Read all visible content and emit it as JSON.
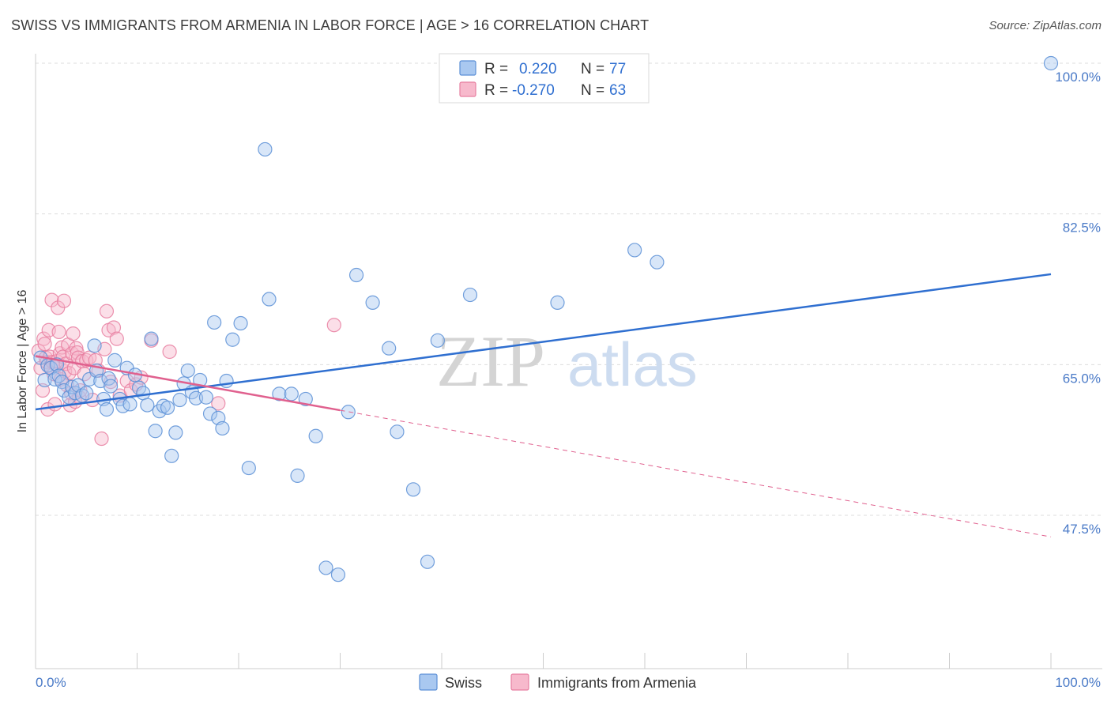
{
  "title": "SWISS VS IMMIGRANTS FROM ARMENIA IN LABOR FORCE | AGE > 16 CORRELATION CHART",
  "source": "Source: ZipAtlas.com",
  "watermark": {
    "zip": "ZIP",
    "atlas": "atlas"
  },
  "colors": {
    "swiss_fill": "#a9c8f0",
    "swiss_stroke": "#5b8fd6",
    "swiss_line": "#2f6fd0",
    "armenia_fill": "#f7b9cc",
    "armenia_stroke": "#e77ea0",
    "armenia_line": "#e0608e",
    "grid": "#dddddd",
    "axis_text": "#4a7ac7"
  },
  "legend": {
    "rows": [
      {
        "r_label": "R =",
        "r_value": "0.220",
        "n_label": "N =",
        "n_value": "77"
      },
      {
        "r_label": "R =",
        "r_value": "-0.270",
        "n_label": "N =",
        "n_value": "63"
      }
    ]
  },
  "chart_data": {
    "type": "scatter",
    "title": "SWISS VS IMMIGRANTS FROM ARMENIA IN LABOR FORCE | AGE > 16 CORRELATION CHART",
    "xlabel": "",
    "ylabel": "In Labor Force | Age > 16",
    "xlim": [
      0,
      100
    ],
    "ylim": [
      33,
      102
    ],
    "x_tick_labels": [
      "0.0%",
      "100.0%"
    ],
    "y_ticks": [
      47.5,
      65.0,
      82.5,
      100.0
    ],
    "y_tick_labels": [
      "47.5%",
      "65.0%",
      "82.5%",
      "100.0%"
    ],
    "grid": true,
    "legend_position": "top-center",
    "series": [
      {
        "name": "Swiss",
        "r": 0.22,
        "n": 77,
        "trend": {
          "x0": 0,
          "y0": 59.8,
          "x1": 100,
          "y1": 75.5,
          "dashed_from": null
        },
        "points": [
          [
            0.5,
            65.8
          ],
          [
            0.9,
            63.2
          ],
          [
            1.2,
            64.9
          ],
          [
            1.5,
            64.6
          ],
          [
            1.9,
            63.3
          ],
          [
            2.1,
            65.0
          ],
          [
            2.3,
            63.7
          ],
          [
            2.6,
            63.0
          ],
          [
            2.8,
            62.0
          ],
          [
            3.3,
            61.2
          ],
          [
            3.6,
            62.4
          ],
          [
            3.9,
            61.7
          ],
          [
            4.2,
            62.6
          ],
          [
            4.6,
            61.4
          ],
          [
            5.0,
            61.7
          ],
          [
            5.3,
            63.3
          ],
          [
            5.8,
            67.2
          ],
          [
            6.0,
            64.3
          ],
          [
            6.4,
            63.1
          ],
          [
            6.7,
            61.0
          ],
          [
            7.0,
            59.8
          ],
          [
            7.2,
            63.4
          ],
          [
            7.4,
            62.5
          ],
          [
            7.8,
            65.5
          ],
          [
            8.3,
            61.0
          ],
          [
            8.6,
            60.2
          ],
          [
            9.0,
            64.6
          ],
          [
            9.3,
            60.4
          ],
          [
            9.8,
            63.8
          ],
          [
            10.2,
            62.3
          ],
          [
            10.6,
            61.7
          ],
          [
            11.0,
            60.3
          ],
          [
            11.4,
            68.0
          ],
          [
            11.8,
            57.3
          ],
          [
            12.2,
            59.6
          ],
          [
            12.6,
            60.2
          ],
          [
            13.0,
            60.0
          ],
          [
            13.4,
            54.4
          ],
          [
            13.8,
            57.1
          ],
          [
            14.2,
            60.9
          ],
          [
            14.6,
            62.8
          ],
          [
            15.0,
            64.3
          ],
          [
            15.4,
            61.8
          ],
          [
            15.8,
            61.1
          ],
          [
            16.2,
            63.2
          ],
          [
            16.8,
            61.2
          ],
          [
            17.2,
            59.3
          ],
          [
            17.6,
            69.9
          ],
          [
            18.0,
            58.8
          ],
          [
            18.4,
            57.6
          ],
          [
            18.8,
            63.1
          ],
          [
            19.4,
            67.9
          ],
          [
            20.2,
            69.8
          ],
          [
            21.0,
            53.0
          ],
          [
            22.6,
            90.0
          ],
          [
            23.0,
            72.6
          ],
          [
            24.0,
            61.6
          ],
          [
            25.2,
            61.6
          ],
          [
            25.8,
            52.1
          ],
          [
            26.6,
            61.0
          ],
          [
            27.6,
            56.7
          ],
          [
            28.6,
            41.4
          ],
          [
            29.8,
            40.6
          ],
          [
            30.8,
            59.5
          ],
          [
            31.6,
            75.4
          ],
          [
            33.2,
            72.2
          ],
          [
            34.8,
            66.9
          ],
          [
            35.6,
            57.2
          ],
          [
            37.2,
            50.5
          ],
          [
            38.6,
            42.1
          ],
          [
            39.6,
            67.8
          ],
          [
            42.8,
            73.1
          ],
          [
            49.8,
            100.0
          ],
          [
            51.4,
            72.2
          ],
          [
            59.0,
            78.3
          ],
          [
            61.2,
            76.9
          ],
          [
            100.0,
            100.0
          ]
        ]
      },
      {
        "name": "Immigrants from Armenia",
        "r": -0.27,
        "n": 63,
        "trend": {
          "x0": 0,
          "y0": 66.0,
          "x1": 100,
          "y1": 45.0,
          "solid_until": 30
        },
        "points": [
          [
            0.3,
            66.6
          ],
          [
            0.5,
            64.6
          ],
          [
            0.7,
            62.0
          ],
          [
            0.8,
            68.0
          ],
          [
            0.9,
            67.4
          ],
          [
            1.0,
            65.8
          ],
          [
            1.1,
            65.3
          ],
          [
            1.2,
            59.8
          ],
          [
            1.3,
            69.0
          ],
          [
            1.4,
            65.9
          ],
          [
            1.5,
            64.7
          ],
          [
            1.6,
            72.5
          ],
          [
            1.7,
            65.3
          ],
          [
            1.8,
            63.9
          ],
          [
            1.9,
            60.4
          ],
          [
            2.0,
            65.0
          ],
          [
            2.1,
            65.4
          ],
          [
            2.2,
            71.6
          ],
          [
            2.3,
            68.8
          ],
          [
            2.4,
            66.3
          ],
          [
            2.5,
            63.3
          ],
          [
            2.6,
            67.0
          ],
          [
            2.7,
            65.9
          ],
          [
            2.8,
            72.4
          ],
          [
            2.9,
            64.2
          ],
          [
            3.0,
            65.1
          ],
          [
            3.1,
            62.6
          ],
          [
            3.2,
            67.3
          ],
          [
            3.3,
            64.0
          ],
          [
            3.4,
            60.3
          ],
          [
            3.5,
            61.7
          ],
          [
            3.6,
            66.3
          ],
          [
            3.7,
            68.6
          ],
          [
            3.8,
            64.6
          ],
          [
            3.9,
            60.7
          ],
          [
            4.0,
            66.9
          ],
          [
            4.1,
            66.4
          ],
          [
            4.2,
            65.8
          ],
          [
            4.3,
            61.2
          ],
          [
            4.4,
            62.0
          ],
          [
            4.6,
            65.4
          ],
          [
            4.8,
            63.9
          ],
          [
            5.0,
            65.5
          ],
          [
            5.3,
            65.8
          ],
          [
            5.6,
            60.9
          ],
          [
            5.9,
            65.5
          ],
          [
            6.2,
            64.3
          ],
          [
            6.5,
            56.4
          ],
          [
            6.8,
            66.8
          ],
          [
            7.0,
            71.2
          ],
          [
            7.2,
            69.0
          ],
          [
            7.4,
            63.0
          ],
          [
            7.7,
            69.3
          ],
          [
            8.0,
            68.0
          ],
          [
            8.3,
            61.4
          ],
          [
            9.0,
            63.1
          ],
          [
            9.4,
            62.0
          ],
          [
            9.9,
            62.7
          ],
          [
            10.4,
            63.5
          ],
          [
            11.4,
            67.8
          ],
          [
            13.2,
            66.5
          ],
          [
            18.0,
            60.5
          ],
          [
            29.4,
            69.6
          ]
        ]
      }
    ]
  },
  "bottom_legend": [
    {
      "label": "Swiss"
    },
    {
      "label": "Immigrants from Armenia"
    }
  ]
}
